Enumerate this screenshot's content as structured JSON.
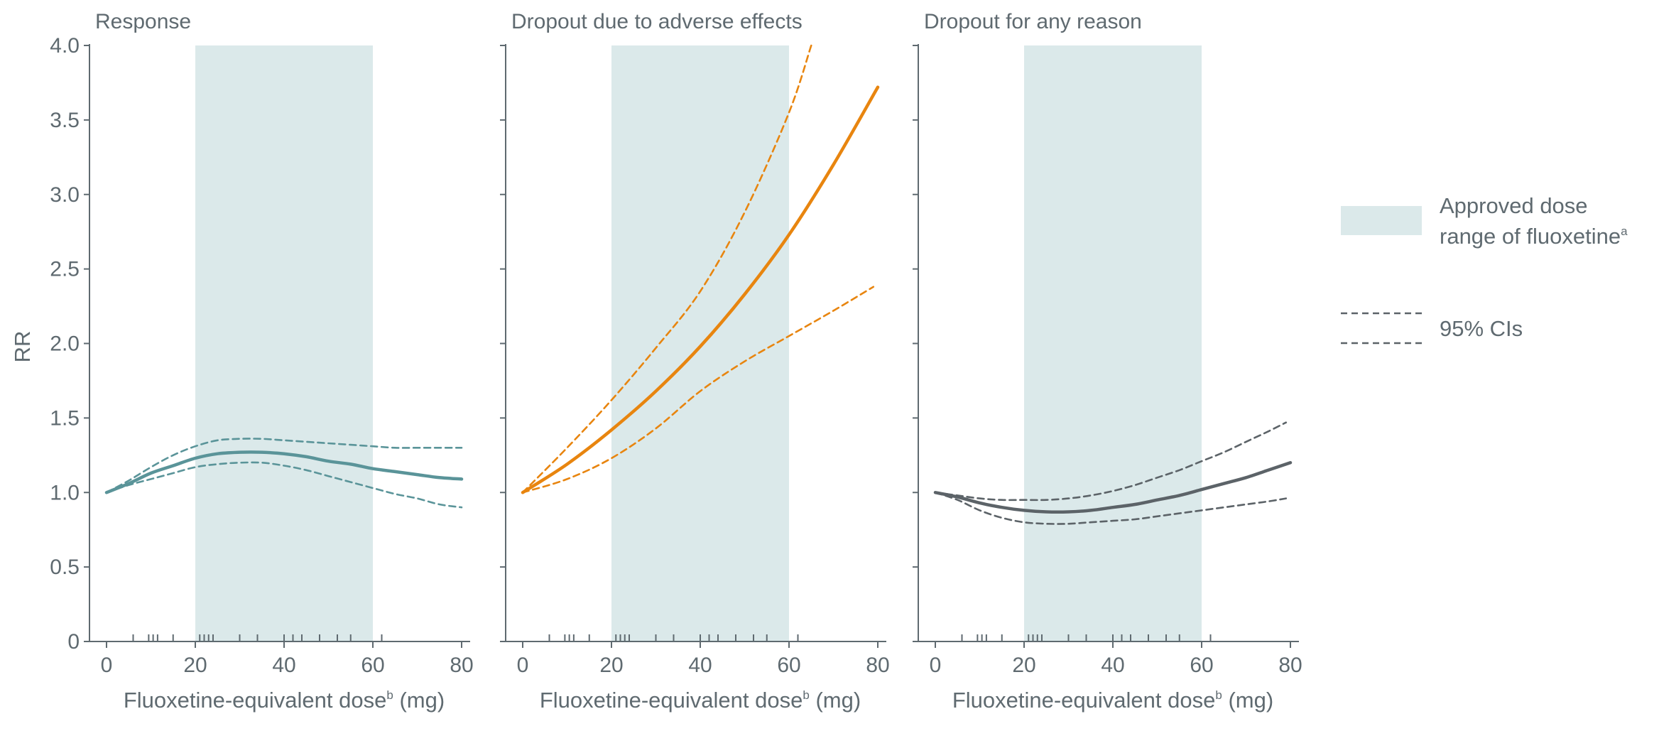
{
  "chart_data": {
    "type": "line",
    "shared_ylabel": "RR",
    "shared_yticks": [
      "0",
      "0.5",
      "1.0",
      "1.5",
      "2.0",
      "2.5",
      "3.0",
      "3.5",
      "4.0"
    ],
    "ylim": [
      0,
      4
    ],
    "xlim": [
      0,
      80
    ],
    "xticks": [
      "0",
      "20",
      "40",
      "60",
      "80"
    ],
    "shaded_region": {
      "x": [
        20,
        60
      ],
      "color": "#dbe9ea"
    },
    "colors": {
      "response": "#5a9499",
      "adverse": "#e8850f",
      "any": "#5c6368",
      "axis": "#5f6a70",
      "legend_dash": "#5c6368"
    },
    "legend": {
      "shaded_label_line1": "Approved dose",
      "shaded_label_line2": "range of fluoxetine",
      "shaded_label_sup": "a",
      "ci_label": "95% CIs"
    },
    "panels": [
      {
        "title": "Response",
        "xlabel_main": "Fluoxetine-equivalent dose",
        "xlabel_sup": "b",
        "xlabel_unit": " (mg)",
        "color_key": "response",
        "rug": [
          6,
          9.5,
          10.5,
          11.5,
          15,
          21,
          22,
          23,
          24,
          30,
          34,
          40,
          42,
          44,
          48,
          52,
          55,
          62
        ],
        "series": [
          {
            "name": "",
            "style": "solid",
            "x": [
              0,
              5,
              10,
              15,
              20,
              25,
              30,
              35,
              40,
              45,
              50,
              55,
              60,
              65,
              70,
              75,
              80
            ],
            "y": [
              1.0,
              1.06,
              1.13,
              1.18,
              1.23,
              1.26,
              1.27,
              1.27,
              1.26,
              1.24,
              1.21,
              1.19,
              1.16,
              1.14,
              1.12,
              1.1,
              1.09
            ]
          },
          {
            "name": "",
            "style": "dashed",
            "x": [
              0,
              5,
              10,
              15,
              20,
              25,
              30,
              35,
              40,
              45,
              50,
              55,
              60,
              65,
              70,
              75,
              80
            ],
            "y": [
              1.0,
              1.08,
              1.17,
              1.25,
              1.31,
              1.35,
              1.36,
              1.36,
              1.35,
              1.34,
              1.33,
              1.32,
              1.31,
              1.3,
              1.3,
              1.3,
              1.3
            ]
          },
          {
            "name": "",
            "style": "dashed",
            "x": [
              0,
              5,
              10,
              15,
              20,
              25,
              30,
              35,
              40,
              45,
              50,
              55,
              60,
              65,
              70,
              75,
              80
            ],
            "y": [
              1.0,
              1.05,
              1.09,
              1.13,
              1.17,
              1.19,
              1.2,
              1.2,
              1.18,
              1.15,
              1.11,
              1.07,
              1.03,
              0.99,
              0.96,
              0.92,
              0.9
            ]
          }
        ]
      },
      {
        "title": "Dropout due to adverse effects",
        "xlabel_main": "Fluoxetine-equivalent dose",
        "xlabel_sup": "b",
        "xlabel_unit": " (mg)",
        "color_key": "adverse",
        "rug": [
          6,
          9.5,
          10.5,
          11.5,
          15,
          21,
          22,
          23,
          24,
          30,
          34,
          40,
          42,
          44,
          48,
          52,
          55,
          62
        ],
        "series": [
          {
            "name": "",
            "style": "solid",
            "x": [
              0,
              10,
              20,
              30,
              40,
              50,
              60,
              70,
              80
            ],
            "y": [
              1.0,
              1.19,
              1.42,
              1.68,
              1.98,
              2.33,
              2.73,
              3.2,
              3.72
            ]
          },
          {
            "name": "",
            "style": "dashed",
            "x": [
              0,
              10,
              20,
              30,
              40,
              50,
              60,
              65
            ],
            "y": [
              1.0,
              1.3,
              1.62,
              1.97,
              2.35,
              2.88,
              3.55,
              4.0
            ]
          },
          {
            "name": "",
            "style": "dashed",
            "x": [
              0,
              10,
              20,
              30,
              40,
              50,
              60,
              70,
              79
            ],
            "y": [
              1.0,
              1.09,
              1.23,
              1.43,
              1.68,
              1.88,
              2.05,
              2.22,
              2.38
            ]
          }
        ]
      },
      {
        "title": "Dropout for any reason",
        "xlabel_main": "Fluoxetine-equivalent dose",
        "xlabel_sup": "b",
        "xlabel_unit": " (mg)",
        "color_key": "any",
        "rug": [
          6,
          9.5,
          10.5,
          11.5,
          15,
          21,
          22,
          23,
          24,
          30,
          34,
          40,
          42,
          44,
          48,
          52,
          55,
          62
        ],
        "series": [
          {
            "name": "",
            "style": "solid",
            "x": [
              0,
              5,
              10,
              15,
              20,
              25,
              30,
              35,
              40,
              45,
              50,
              55,
              60,
              65,
              70,
              75,
              80
            ],
            "y": [
              1.0,
              0.97,
              0.93,
              0.9,
              0.88,
              0.87,
              0.87,
              0.88,
              0.9,
              0.92,
              0.95,
              0.98,
              1.02,
              1.06,
              1.1,
              1.15,
              1.2
            ]
          },
          {
            "name": "",
            "style": "dashed",
            "x": [
              0,
              5,
              10,
              15,
              20,
              25,
              30,
              35,
              40,
              45,
              50,
              55,
              60,
              65,
              70,
              75,
              79
            ],
            "y": [
              1.0,
              0.98,
              0.96,
              0.95,
              0.95,
              0.95,
              0.96,
              0.98,
              1.01,
              1.05,
              1.1,
              1.15,
              1.21,
              1.27,
              1.34,
              1.41,
              1.47
            ]
          },
          {
            "name": "",
            "style": "dashed",
            "x": [
              0,
              5,
              10,
              15,
              20,
              25,
              30,
              35,
              40,
              45,
              50,
              55,
              60,
              65,
              70,
              75,
              79
            ],
            "y": [
              1.0,
              0.95,
              0.88,
              0.83,
              0.8,
              0.79,
              0.79,
              0.8,
              0.81,
              0.82,
              0.84,
              0.86,
              0.88,
              0.9,
              0.92,
              0.94,
              0.96
            ]
          }
        ]
      }
    ]
  }
}
